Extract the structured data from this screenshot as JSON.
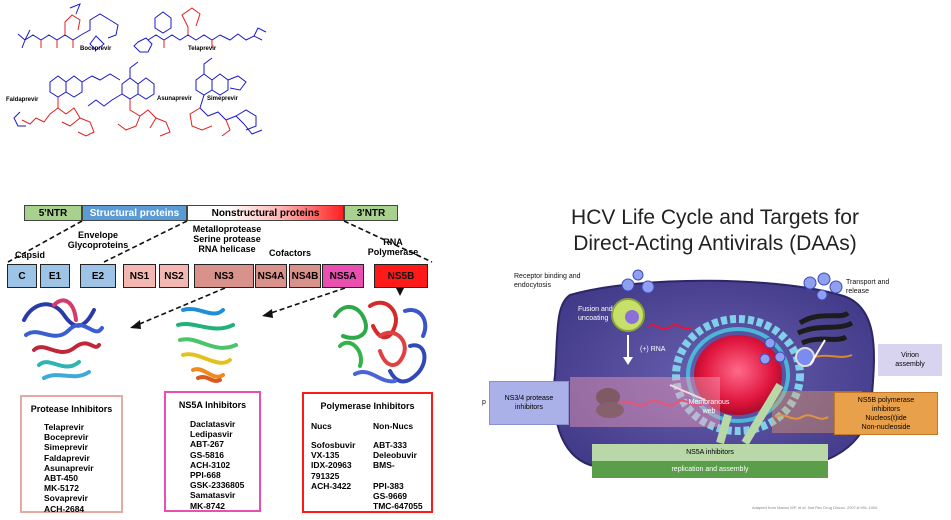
{
  "structures": {
    "labels": [
      "Boceprevir",
      "Telaprevir",
      "Faldaprevir",
      "Asunaprevir",
      "Simeprevir"
    ]
  },
  "genome": {
    "five_ntr": "5'NTR",
    "structural": "Structural proteins",
    "nonstructural": "Nonstructural proteins",
    "three_ntr": "3'NTR",
    "annotations": {
      "capsid": "Capsid",
      "envelope": "Envelope Glycoproteins",
      "ns3_functions": "Metalloprotease Serine protease RNA helicase",
      "cofactors": "Cofactors",
      "rna_polymerase": "RNA Polymerase"
    },
    "proteins": [
      "C",
      "E1",
      "E2",
      "NS1",
      "NS2",
      "NS3",
      "NS4A",
      "NS4B",
      "NS5A",
      "NS5B"
    ],
    "colors": {
      "ntr": "#a9d18e",
      "structural": "#5b9bd5",
      "protein_blue": "#9dc3e6",
      "protein_pink": "#f4b6b0",
      "ns3": "#d9918b",
      "ns5a": "#e84fb0",
      "ns5b": "#ff1a1a"
    }
  },
  "inhibitors": {
    "protease": {
      "title": "Protease Inhibitors",
      "items": [
        "Telaprevir",
        "Boceprevir",
        "Simeprevir",
        "Faldaprevir",
        "Asunaprevir",
        "ABT-450",
        "MK-5172",
        "Sovaprevir",
        "ACH-2684"
      ]
    },
    "ns5a": {
      "title": "NS5A Inhibitors",
      "items": [
        "Daclatasvir",
        "Ledipasvir",
        "ABT-267",
        "GS-5816",
        "ACH-3102",
        "PPI-668",
        "GSK-2336805",
        "Samatasvir",
        "MK-8742"
      ]
    },
    "polymerase": {
      "title": "Polymerase Inhibitors",
      "nucs_header": "Nucs",
      "nonnucs_header": "Non-Nucs",
      "nucs": [
        "Sofosbuvir",
        "VX-135",
        "IDX-20963",
        "791325",
        "ACH-3422"
      ],
      "nonnucs": [
        "ABT-333",
        "Deleobuvir",
        "BMS-",
        "",
        "PPI-383",
        "GS-9669",
        "TMC-647055"
      ]
    }
  },
  "lifecycle": {
    "title_line1": "HCV Life Cycle and Targets for",
    "title_line2": "Direct-Acting Antivirals (DAAs)",
    "receptor": "Receptor binding and endocytosis",
    "transport": "Transport and release",
    "fusion": "Fusion and uncoating",
    "rna": "(+) RNA",
    "virion": "Virion assembly",
    "ns34_box": "NS3/4 protease inhibitors",
    "ns5b_box_title": "NS5B polymerase inhibitors",
    "ns5b_box_sub1": "Nucleos(t)ide",
    "ns5b_box_sub2": "Non-nucleoside",
    "membranous": "Membranous web",
    "ns5a_box": "NS5A inhibitors",
    "replication_box": "replication and assembly",
    "citation": "Adapted from Manns MP, et al. Nat Rev Drug Discov. 2007;6:991-1000.",
    "left_fragment": "p"
  }
}
